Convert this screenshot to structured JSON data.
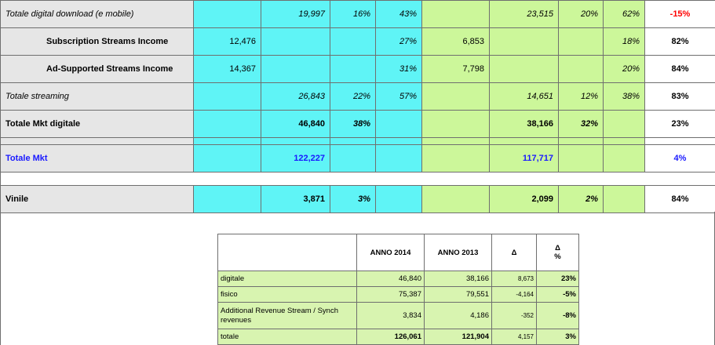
{
  "main_table": {
    "digital_download": {
      "label": "Totale digital download  (e mobile)",
      "v2014_total": "19,997",
      "pct2014_a": "16%",
      "pct2014_b": "43%",
      "v2013_total": "23,515",
      "pct2013_a": "20%",
      "pct2013_b": "62%",
      "delta": "-15%"
    },
    "subscription": {
      "label": "Subscription Streams Income",
      "v2014_sub": "12,476",
      "pct2014_b": "27%",
      "v2013_sub": "6,853",
      "pct2013_b": "18%",
      "delta": "82%"
    },
    "ad_supported": {
      "label": "Ad-Supported Streams Income",
      "v2014_sub": "14,367",
      "pct2014_b": "31%",
      "v2013_sub": "7,798",
      "pct2013_b": "20%",
      "delta": "84%"
    },
    "streaming": {
      "label": "Totale streaming",
      "v2014_total": "26,843",
      "pct2014_a": "22%",
      "pct2014_b": "57%",
      "v2013_total": "14,651",
      "pct2013_a": "12%",
      "pct2013_b": "38%",
      "delta": "83%"
    },
    "digitale": {
      "label": "Totale Mkt digitale",
      "v2014_total": "46,840",
      "pct2014_a": "38%",
      "v2013_total": "38,166",
      "pct2013_a": "32%",
      "delta": "23%"
    },
    "totale_mkt": {
      "label": "Totale Mkt",
      "v2014_total": "122,227",
      "v2013_total": "117,717",
      "delta": "4%"
    },
    "vinile": {
      "label": "Vinile",
      "v2014_total": "3,871",
      "pct2014_a": "3%",
      "v2013_total": "2,099",
      "pct2013_a": "2%",
      "delta": "84%"
    }
  },
  "summary_table": {
    "headers": {
      "anno2014": "ANNO 2014",
      "anno2013": "ANNO 2013",
      "delta": "Δ",
      "delta_pct_1": "Δ",
      "delta_pct_2": "%"
    },
    "rows": [
      {
        "label": "digitale",
        "v2014": "46,840",
        "v2013": "38,166",
        "delta": "8,673",
        "pct": "23%"
      },
      {
        "label": "fisico",
        "v2014": "75,387",
        "v2013": "79,551",
        "delta": "-4,164",
        "pct": "-5%"
      },
      {
        "label": "Additional Revenue Stream / Synch revenues",
        "v2014": "3,834",
        "v2013": "4,186",
        "delta": "-352",
        "pct": "-8%"
      },
      {
        "label": "totale",
        "v2014": "126,061",
        "v2013": "121,904",
        "delta": "4,157",
        "pct": "3%"
      }
    ]
  },
  "colors": {
    "cyan": "#5ff4f6",
    "green": "#ccf79a",
    "gray": "#e6e6e6",
    "red": "#ff0000",
    "blue": "#1a1aff"
  }
}
